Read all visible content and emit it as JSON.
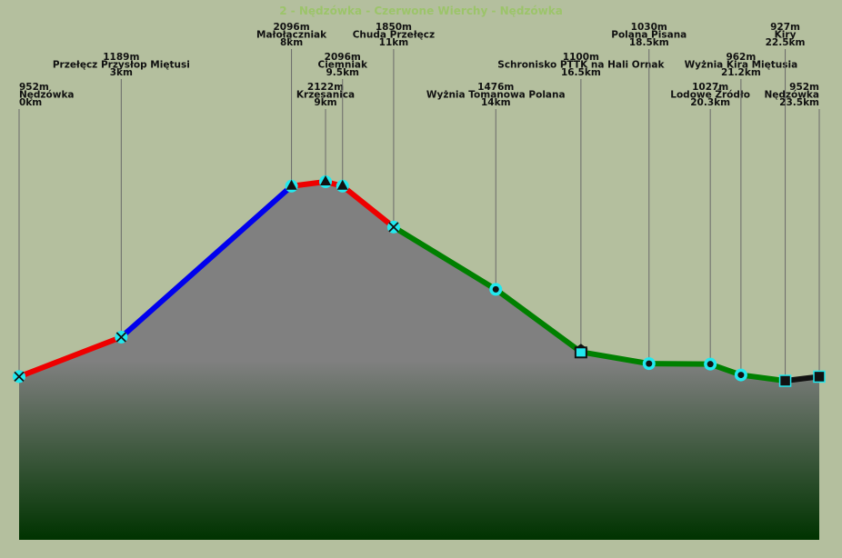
{
  "chart_data": {
    "type": "profile",
    "title": "2 - Nędzówka - Czerwone Wierchy - Nędzówka",
    "names": [
      "Nędzówka",
      "Przełęcz Przysłop Miętusi",
      "Małołączniak",
      "Krzesanica",
      "Ciemniak",
      "Chuda Przełęcz",
      "Wyżnia Tomanowa Polana",
      "Schronisko PTTK na Hali Ornak",
      "Polana Pisana",
      "Lodowe Źródło",
      "Wyżnia Kira Miętusia",
      "Kiry",
      "Nędzówka"
    ],
    "x": [
      0,
      3,
      8,
      9,
      9.5,
      11,
      14,
      16.5,
      18.5,
      20.3,
      21.2,
      22.5,
      23.5
    ],
    "x_labels": [
      "0km",
      "3km",
      "8km",
      "9km",
      "9.5km",
      "11km",
      "14km",
      "16.5km",
      "18.5km",
      "20.3km",
      "21.2km",
      "22.5km",
      "23.5km"
    ],
    "values": [
      952,
      1189,
      2096,
      2122,
      2096,
      1850,
      1476,
      1100,
      1030,
      1027,
      962,
      927,
      952
    ],
    "value_labels": [
      "952m",
      "1189m",
      "2096m",
      "2122m",
      "2096m",
      "1850m",
      "1476m",
      "1100m",
      "1030m",
      "1027m",
      "962m",
      "927m",
      "952m"
    ],
    "markers": [
      "cross",
      "cross",
      "triangle",
      "triangle",
      "triangle",
      "cross",
      "dot",
      "hut",
      "dot",
      "dot",
      "dot",
      "square",
      "square"
    ],
    "segment_colors": [
      "#ee0000",
      "#0000ee",
      "#ee0000",
      "#ee0000",
      "#ee0000",
      "#008000",
      "#008000",
      "#008000",
      "#008000",
      "#008000",
      "#008000",
      "#111111"
    ]
  }
}
